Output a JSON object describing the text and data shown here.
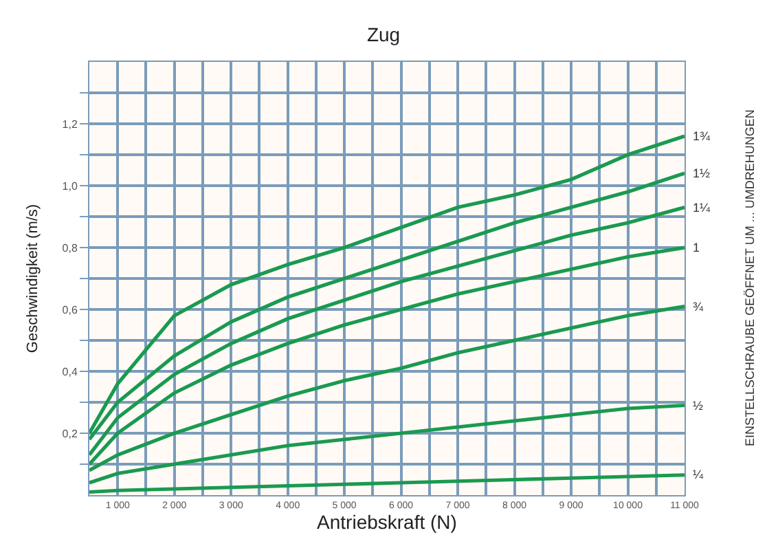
{
  "chart_data": {
    "type": "line",
    "title": "Zug",
    "xlabel": "Antriebskraft (N)",
    "ylabel": "Geschwindigkeit (m/s)",
    "annotations": [
      "EINSTELLSCHRAUBE GEÖFFNET UM ... UMDREHUNGEN"
    ],
    "x": [
      500,
      1000,
      2000,
      3000,
      4000,
      5000,
      6000,
      7000,
      8000,
      9000,
      10000,
      11000
    ],
    "series": [
      {
        "name": "1¾",
        "color": "#1a9a50",
        "values": [
          0.2,
          0.36,
          0.58,
          0.68,
          0.745,
          0.8,
          0.865,
          0.93,
          0.97,
          1.02,
          1.1,
          1.16
        ]
      },
      {
        "name": "1½",
        "color": "#1a9a50",
        "values": [
          0.18,
          0.3,
          0.45,
          0.56,
          0.64,
          0.7,
          0.76,
          0.82,
          0.88,
          0.93,
          0.98,
          1.04
        ]
      },
      {
        "name": "1¼",
        "color": "#1a9a50",
        "values": [
          0.13,
          0.25,
          0.39,
          0.49,
          0.57,
          0.63,
          0.69,
          0.74,
          0.79,
          0.84,
          0.88,
          0.93
        ]
      },
      {
        "name": "1",
        "color": "#1a9a50",
        "values": [
          0.1,
          0.2,
          0.33,
          0.42,
          0.49,
          0.55,
          0.6,
          0.65,
          0.69,
          0.73,
          0.77,
          0.8
        ]
      },
      {
        "name": "¾",
        "color": "#1a9a50",
        "values": [
          0.08,
          0.13,
          0.2,
          0.26,
          0.32,
          0.37,
          0.41,
          0.46,
          0.5,
          0.54,
          0.58,
          0.61
        ]
      },
      {
        "name": "½",
        "color": "#1a9a50",
        "values": [
          0.04,
          0.07,
          0.1,
          0.13,
          0.16,
          0.18,
          0.2,
          0.22,
          0.24,
          0.26,
          0.28,
          0.29
        ]
      },
      {
        "name": "¼",
        "color": "#1a9a50",
        "values": [
          0.01,
          0.015,
          0.02,
          0.025,
          0.03,
          0.035,
          0.04,
          0.045,
          0.05,
          0.055,
          0.06,
          0.065
        ]
      }
    ],
    "xlim": [
      500,
      11000
    ],
    "xticks": [
      {
        "value": 500,
        "label": null
      },
      {
        "value": 1000,
        "label": "1 000"
      },
      {
        "value": 1500,
        "label": null
      },
      {
        "value": 2000,
        "label": "2 000"
      },
      {
        "value": 2500,
        "label": null
      },
      {
        "value": 3000,
        "label": "3 000"
      },
      {
        "value": 3500,
        "label": null
      },
      {
        "value": 4000,
        "label": "4 000"
      },
      {
        "value": 4500,
        "label": null
      },
      {
        "value": 5000,
        "label": "5 000"
      },
      {
        "value": 5500,
        "label": null
      },
      {
        "value": 6000,
        "label": "6 000"
      },
      {
        "value": 6500,
        "label": null
      },
      {
        "value": 7000,
        "label": "7 000"
      },
      {
        "value": 7500,
        "label": null
      },
      {
        "value": 8000,
        "label": "8 000"
      },
      {
        "value": 8500,
        "label": null
      },
      {
        "value": 9000,
        "label": "9 000"
      },
      {
        "value": 9500,
        "label": null
      },
      {
        "value": 10000,
        "label": "10 000"
      },
      {
        "value": 10500,
        "label": null
      },
      {
        "value": 11000,
        "label": "11 000"
      }
    ],
    "ylim": [
      0,
      1.4
    ],
    "yticks": [
      {
        "value": 0.1,
        "label": null
      },
      {
        "value": 0.2,
        "label": "0,2"
      },
      {
        "value": 0.3,
        "label": null
      },
      {
        "value": 0.4,
        "label": "0,4"
      },
      {
        "value": 0.5,
        "label": null
      },
      {
        "value": 0.6,
        "label": "0,6"
      },
      {
        "value": 0.7,
        "label": null
      },
      {
        "value": 0.8,
        "label": "0,8"
      },
      {
        "value": 0.9,
        "label": null
      },
      {
        "value": 1.0,
        "label": "1,0"
      },
      {
        "value": 1.1,
        "label": null
      },
      {
        "value": 1.2,
        "label": "1,2"
      },
      {
        "value": 1.3,
        "label": null
      }
    ],
    "grid": true,
    "legend": false,
    "marker": "none",
    "line_style": "solid"
  }
}
